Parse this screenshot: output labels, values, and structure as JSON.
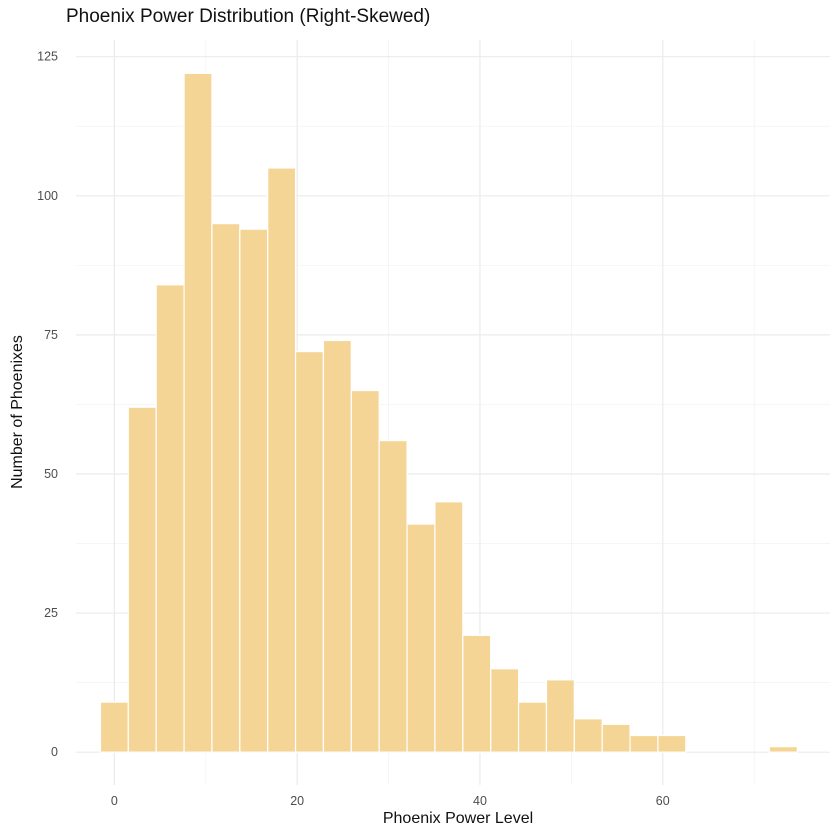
{
  "chart_data": {
    "type": "bar",
    "title": "Phoenix Power Distribution (Right-Skewed)",
    "xlabel": "Phoenix Power Level",
    "ylabel": "Number of Phoenixes",
    "binwidth": 3.05,
    "x": [
      0,
      3.05,
      6.1,
      9.15,
      12.2,
      15.25,
      18.3,
      21.35,
      24.4,
      27.45,
      30.5,
      33.55,
      36.6,
      39.65,
      42.7,
      45.75,
      48.8,
      51.85,
      54.9,
      57.95,
      61.0,
      64.05,
      67.1,
      70.15,
      73.2
    ],
    "values": [
      9,
      62,
      84,
      122,
      95,
      94,
      105,
      72,
      74,
      65,
      56,
      41,
      45,
      21,
      15,
      9,
      13,
      6,
      5,
      3,
      3,
      0,
      0,
      0,
      1
    ],
    "xlim": [
      -4.2,
      78.3
    ],
    "ylim": [
      -5.9,
      128
    ],
    "xticks": [
      "0",
      "20",
      "40",
      "60"
    ],
    "xtick_values": [
      0,
      20,
      40,
      60
    ],
    "yticks": [
      "0",
      "25",
      "50",
      "75",
      "100",
      "125"
    ],
    "ytick_values": [
      0,
      25,
      50,
      75,
      100,
      125
    ],
    "grid": true,
    "fill_color": "#F5D596",
    "edge_color": "#FFFFFF"
  }
}
